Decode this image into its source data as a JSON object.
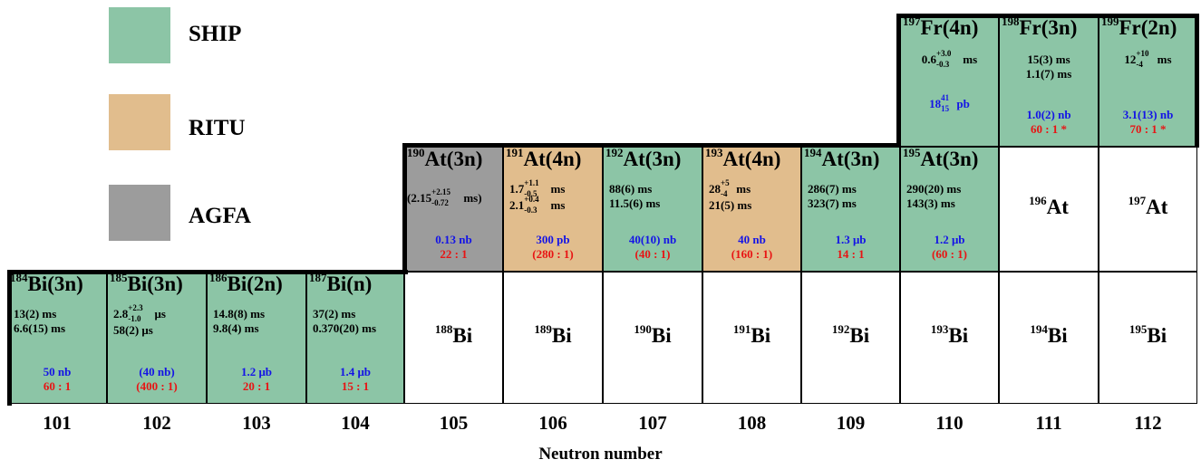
{
  "legend": [
    {
      "label": "SHIP",
      "color": "#8cc5a6"
    },
    {
      "label": "RITU",
      "color": "#e1bd8d"
    },
    {
      "label": "AGFA",
      "color": "#9c9c9c"
    }
  ],
  "colors": {
    "ship": "#8cc5a6",
    "ritu": "#e1bd8d",
    "agfa": "#9c9c9c",
    "cross_section": "#1414e6",
    "ratio": "#e81414"
  },
  "fr_row": [
    {
      "mass": "197",
      "element": "Fr",
      "channel": "(4n)",
      "lines": [
        {
          "base": "0.6",
          "up": "+3.0",
          "down": "-0.3",
          "unit": " ms"
        }
      ],
      "cross_section": {
        "base": "18",
        "up": "41",
        "down": "15",
        "unit": " pb"
      },
      "ratio": ""
    },
    {
      "mass": "198",
      "element": "Fr",
      "channel": "(3n)",
      "lines": [
        {
          "text": "15(3) ms"
        },
        {
          "text": "1.1(7) ms"
        }
      ],
      "cross_section": {
        "text": "1.0(2) nb"
      },
      "ratio": "60 : 1 *"
    },
    {
      "mass": "199",
      "element": "Fr",
      "channel": "(2n)",
      "lines": [
        {
          "base": "12",
          "up": "+10",
          "down": "-4",
          "unit": " ms"
        }
      ],
      "cross_section": {
        "text": "3.1(13) nb"
      },
      "ratio": "70 : 1 *"
    }
  ],
  "at_row": [
    {
      "mass": "190",
      "element": "At",
      "channel": "(3n)",
      "lines": [
        {
          "pre": "(",
          "base": "2.15",
          "up": "+2.15",
          "down": "-0.72",
          "unit": " ms)"
        }
      ],
      "cross_section": {
        "text": "0.13 nb"
      },
      "ratio": "22 : 1"
    },
    {
      "mass": "191",
      "element": "At",
      "channel": "(4n)",
      "lines": [
        {
          "base": "1.7",
          "up": "+1.1",
          "down": "-0.5",
          "unit": " ms"
        },
        {
          "base": "2.1",
          "up": "+0.4",
          "down": "-0.3",
          "unit": " ms"
        }
      ],
      "cross_section": {
        "text": "300 pb"
      },
      "ratio": "(280 : 1)"
    },
    {
      "mass": "192",
      "element": "At",
      "channel": "(3n)",
      "lines": [
        {
          "text": "88(6) ms"
        },
        {
          "text": "11.5(6) ms"
        }
      ],
      "cross_section": {
        "text": "40(10) nb"
      },
      "ratio": "(40 : 1)"
    },
    {
      "mass": "193",
      "element": "At",
      "channel": "(4n)",
      "lines": [
        {
          "base": "28",
          "up": "+5",
          "down": "-4",
          "unit": " ms"
        },
        {
          "text": "21(5) ms"
        }
      ],
      "cross_section": {
        "text": "40 nb"
      },
      "ratio": "(160 : 1)"
    },
    {
      "mass": "194",
      "element": "At",
      "channel": "(3n)",
      "lines": [
        {
          "text": "286(7) ms"
        },
        {
          "text": "323(7) ms"
        }
      ],
      "cross_section": {
        "text": "1.3  μb"
      },
      "ratio": "14 : 1"
    },
    {
      "mass": "195",
      "element": "At",
      "channel": "(3n)",
      "lines": [
        {
          "text": "290(20) ms"
        },
        {
          "text": "143(3) ms"
        }
      ],
      "cross_section": {
        "text": "1.2  μb"
      },
      "ratio": "(60 : 1)"
    },
    {
      "mass": "196",
      "element": "At"
    },
    {
      "mass": "197",
      "element": "At"
    }
  ],
  "bi_row": [
    {
      "mass": "184",
      "element": "Bi",
      "channel": "(3n)",
      "lines": [
        {
          "text": "13(2) ms"
        },
        {
          "text": "6.6(15) ms"
        }
      ],
      "cross_section": {
        "text": "50 nb"
      },
      "ratio": "60 : 1"
    },
    {
      "mass": "185",
      "element": "Bi",
      "channel": "(3n)",
      "lines": [
        {
          "base": "2.8",
          "up": "+2.3",
          "down": "-1.0",
          "unit": "  μs"
        },
        {
          "text": "58(2)  μs"
        }
      ],
      "cross_section": {
        "text": "(40 nb)"
      },
      "ratio": "(400 : 1)"
    },
    {
      "mass": "186",
      "element": "Bi",
      "channel": "(2n)",
      "lines": [
        {
          "text": "14.8(8) ms"
        },
        {
          "text": "9.8(4) ms"
        }
      ],
      "cross_section": {
        "text": "1.2  μb"
      },
      "ratio": "20 : 1"
    },
    {
      "mass": "187",
      "element": "Bi",
      "channel": "(n)",
      "lines": [
        {
          "text": "37(2) ms"
        },
        {
          "text": "0.370(20) ms"
        }
      ],
      "cross_section": {
        "text": "1.4  μb"
      },
      "ratio": "15 : 1"
    },
    {
      "mass": "188",
      "element": "Bi"
    },
    {
      "mass": "189",
      "element": "Bi"
    },
    {
      "mass": "190",
      "element": "Bi"
    },
    {
      "mass": "191",
      "element": "Bi"
    },
    {
      "mass": "192",
      "element": "Bi"
    },
    {
      "mass": "193",
      "element": "Bi"
    },
    {
      "mass": "194",
      "element": "Bi"
    },
    {
      "mass": "195",
      "element": "Bi"
    }
  ],
  "axis": {
    "neutron_numbers": [
      "101",
      "102",
      "103",
      "104",
      "105",
      "106",
      "107",
      "108",
      "109",
      "110",
      "111",
      "112"
    ],
    "title": "Neutron number"
  }
}
